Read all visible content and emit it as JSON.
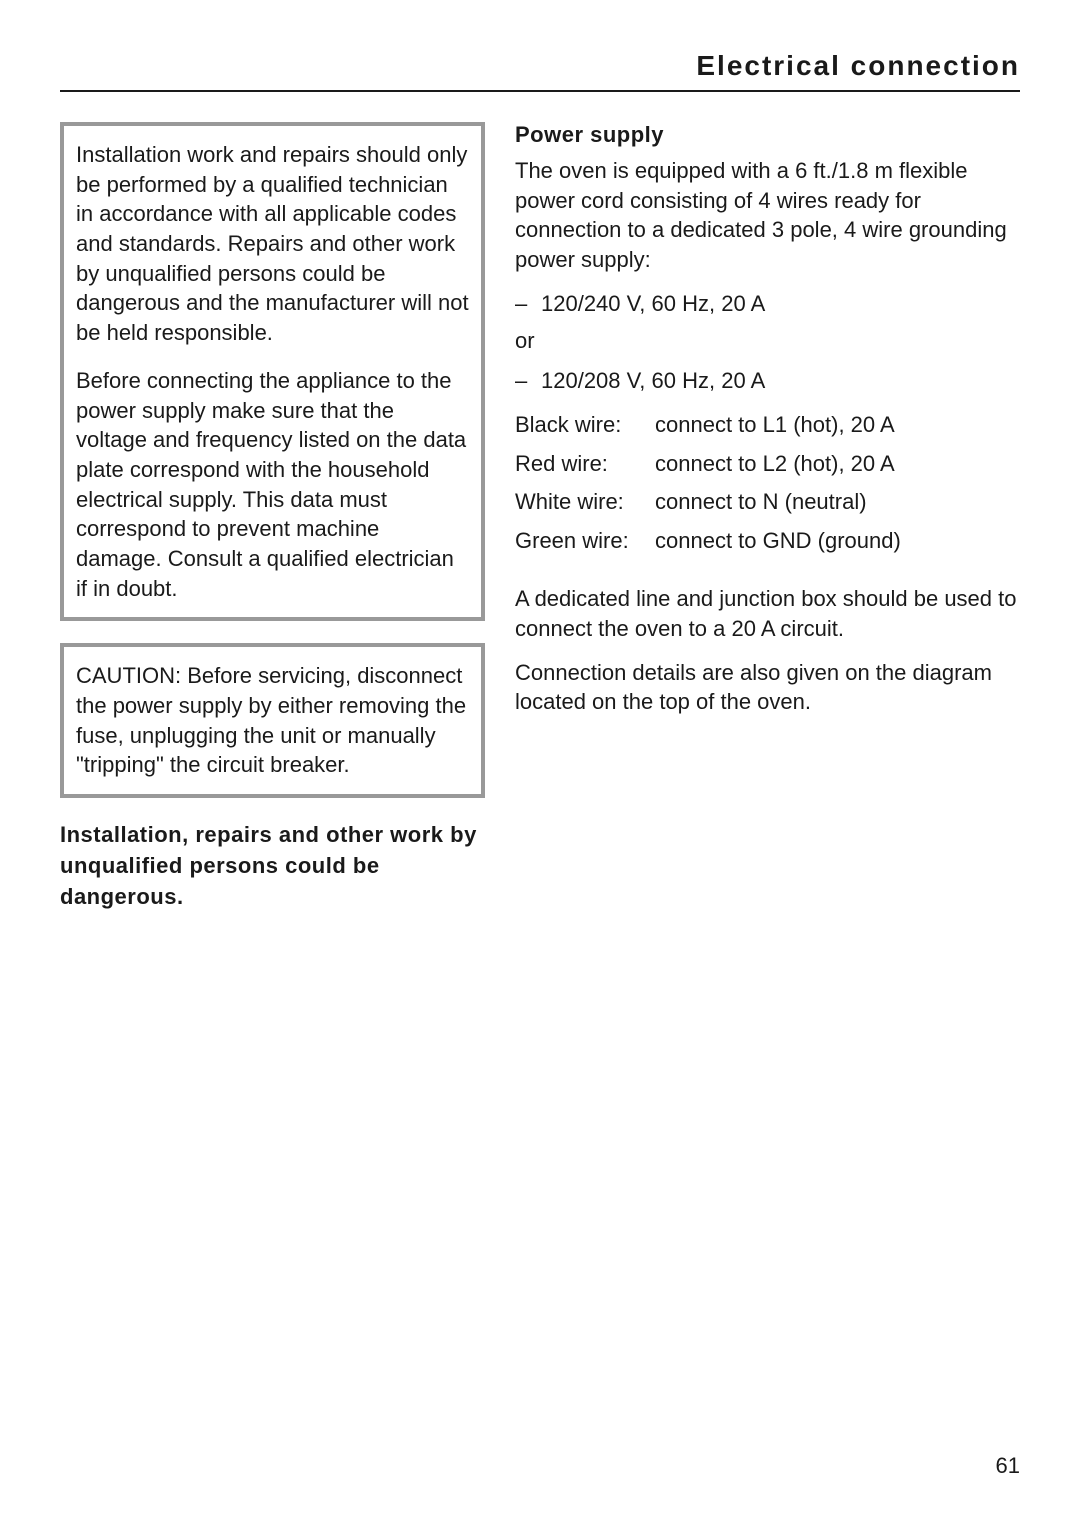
{
  "page_title": "Electrical connection",
  "notice_box_1": {
    "paragraph_1": "Installation work and repairs should only be performed by a qualified technician in accordance with all applicable codes and standards. Repairs and other work by unqualified persons could be dangerous and the manufacturer will not be held responsible.",
    "paragraph_2": "Before connecting the appliance to the power supply make sure that the voltage and frequency listed on the data plate correspond with the household electrical supply. This data must correspond to prevent machine damage. Consult a qualified electrician if in doubt."
  },
  "notice_box_2": {
    "paragraph_1": "CAUTION: Before servicing, disconnect the power supply by either removing the fuse, unplugging the unit or manually \"tripping\" the circuit breaker."
  },
  "warning": "Installation, repairs and other work by unqualified persons could be dangerous.",
  "right_section": {
    "header": "Power supply",
    "intro": "The oven is equipped with a 6 ft./1.8 m flexible power cord consisting of 4 wires ready for connection to a dedicated 3 pole, 4 wire grounding power supply:",
    "option_1": "120/240 V, 60 Hz, 20 A",
    "or_text": "or",
    "option_2": "120/208 V, 60 Hz, 20 A",
    "wires": [
      {
        "label": "Black wire:",
        "value": "connect to L1 (hot), 20 A"
      },
      {
        "label": "Red wire:",
        "value": "connect to L2 (hot), 20 A"
      },
      {
        "label": "White wire:",
        "value": "connect to N (neutral)"
      },
      {
        "label": "Green wire:",
        "value": "connect to GND (ground)"
      }
    ],
    "footer_1": "A dedicated line and junction box should be used to connect the oven to a 20 A circuit.",
    "footer_2": "Connection details are also given on the diagram located on the top of the oven."
  },
  "page_number": "61"
}
